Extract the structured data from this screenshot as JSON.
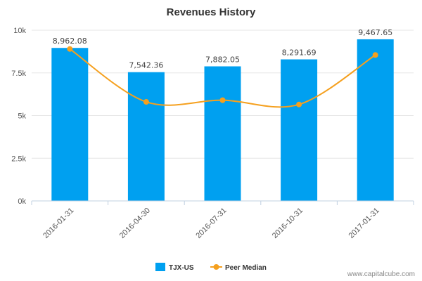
{
  "chart_data": {
    "type": "bar",
    "title": "Revenues History",
    "categories": [
      "2016-01-31",
      "2016-04-30",
      "2016-07-31",
      "2016-10-31",
      "2017-01-31"
    ],
    "series": [
      {
        "name": "TJX-US",
        "type": "bar",
        "color": "#00a0f0",
        "values": [
          8962.08,
          7542.36,
          7882.05,
          8291.69,
          9467.65
        ],
        "labels": [
          "8,962.08",
          "7,542.36",
          "7,882.05",
          "8,291.69",
          "9,467.65"
        ]
      },
      {
        "name": "Peer Median",
        "type": "line",
        "color": "#f5a01e",
        "values": [
          8900,
          5800,
          5900,
          5650,
          8550
        ]
      }
    ],
    "yticks": [
      {
        "value": 0,
        "label": "0k"
      },
      {
        "value": 2500,
        "label": "2.5k"
      },
      {
        "value": 5000,
        "label": "5k"
      },
      {
        "value": 7500,
        "label": "7.5k"
      },
      {
        "value": 10000,
        "label": "10k"
      }
    ],
    "ylim": [
      0,
      10000
    ],
    "grid": true,
    "legend_position": "bottom-center"
  },
  "credit": "www.capitalcube.com"
}
